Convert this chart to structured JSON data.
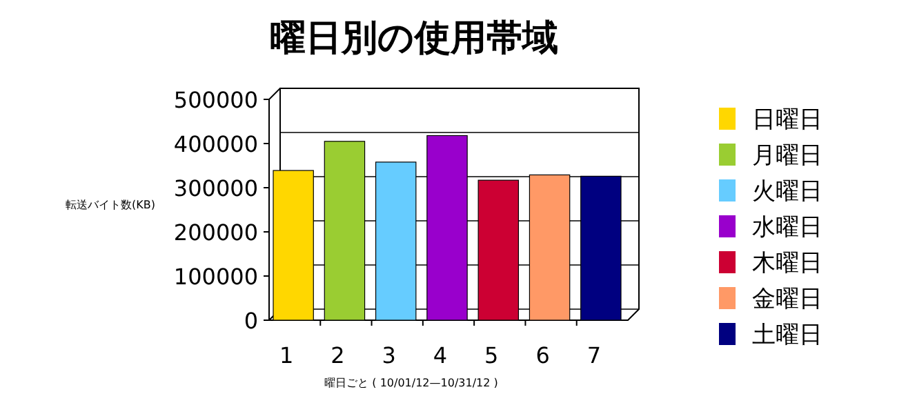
{
  "chart_data": {
    "type": "bar",
    "title": "曜日別の使用帯域",
    "xlabel": "曜日ごと ( 10/01/12—10/31/12 )",
    "ylabel": "転送バイト数(KB)",
    "categories": [
      "1",
      "2",
      "3",
      "4",
      "5",
      "6",
      "7"
    ],
    "series": [
      {
        "name": "日曜日",
        "color": "#ffd700",
        "values": [
          339000,
          null,
          null,
          null,
          null,
          null,
          null
        ]
      },
      {
        "name": "月曜日",
        "color": "#9acd32",
        "values": [
          null,
          405000,
          null,
          null,
          null,
          null,
          null
        ]
      },
      {
        "name": "火曜日",
        "color": "#66ccff",
        "values": [
          null,
          null,
          358000,
          null,
          null,
          null,
          null
        ]
      },
      {
        "name": "水曜日",
        "color": "#9900cc",
        "values": [
          null,
          null,
          null,
          418000,
          null,
          null,
          null
        ]
      },
      {
        "name": "木曜日",
        "color": "#cc0033",
        "values": [
          null,
          null,
          null,
          null,
          317000,
          null,
          null
        ]
      },
      {
        "name": "金曜日",
        "color": "#ff9966",
        "values": [
          null,
          null,
          null,
          null,
          null,
          329000,
          null
        ]
      },
      {
        "name": "土曜日",
        "color": "#000080",
        "values": [
          null,
          null,
          null,
          null,
          null,
          null,
          326000
        ]
      }
    ],
    "ylim": [
      0,
      500000
    ],
    "yticks": [
      0,
      100000,
      200000,
      300000,
      400000,
      500000
    ],
    "grid": "y",
    "legend": "right"
  }
}
